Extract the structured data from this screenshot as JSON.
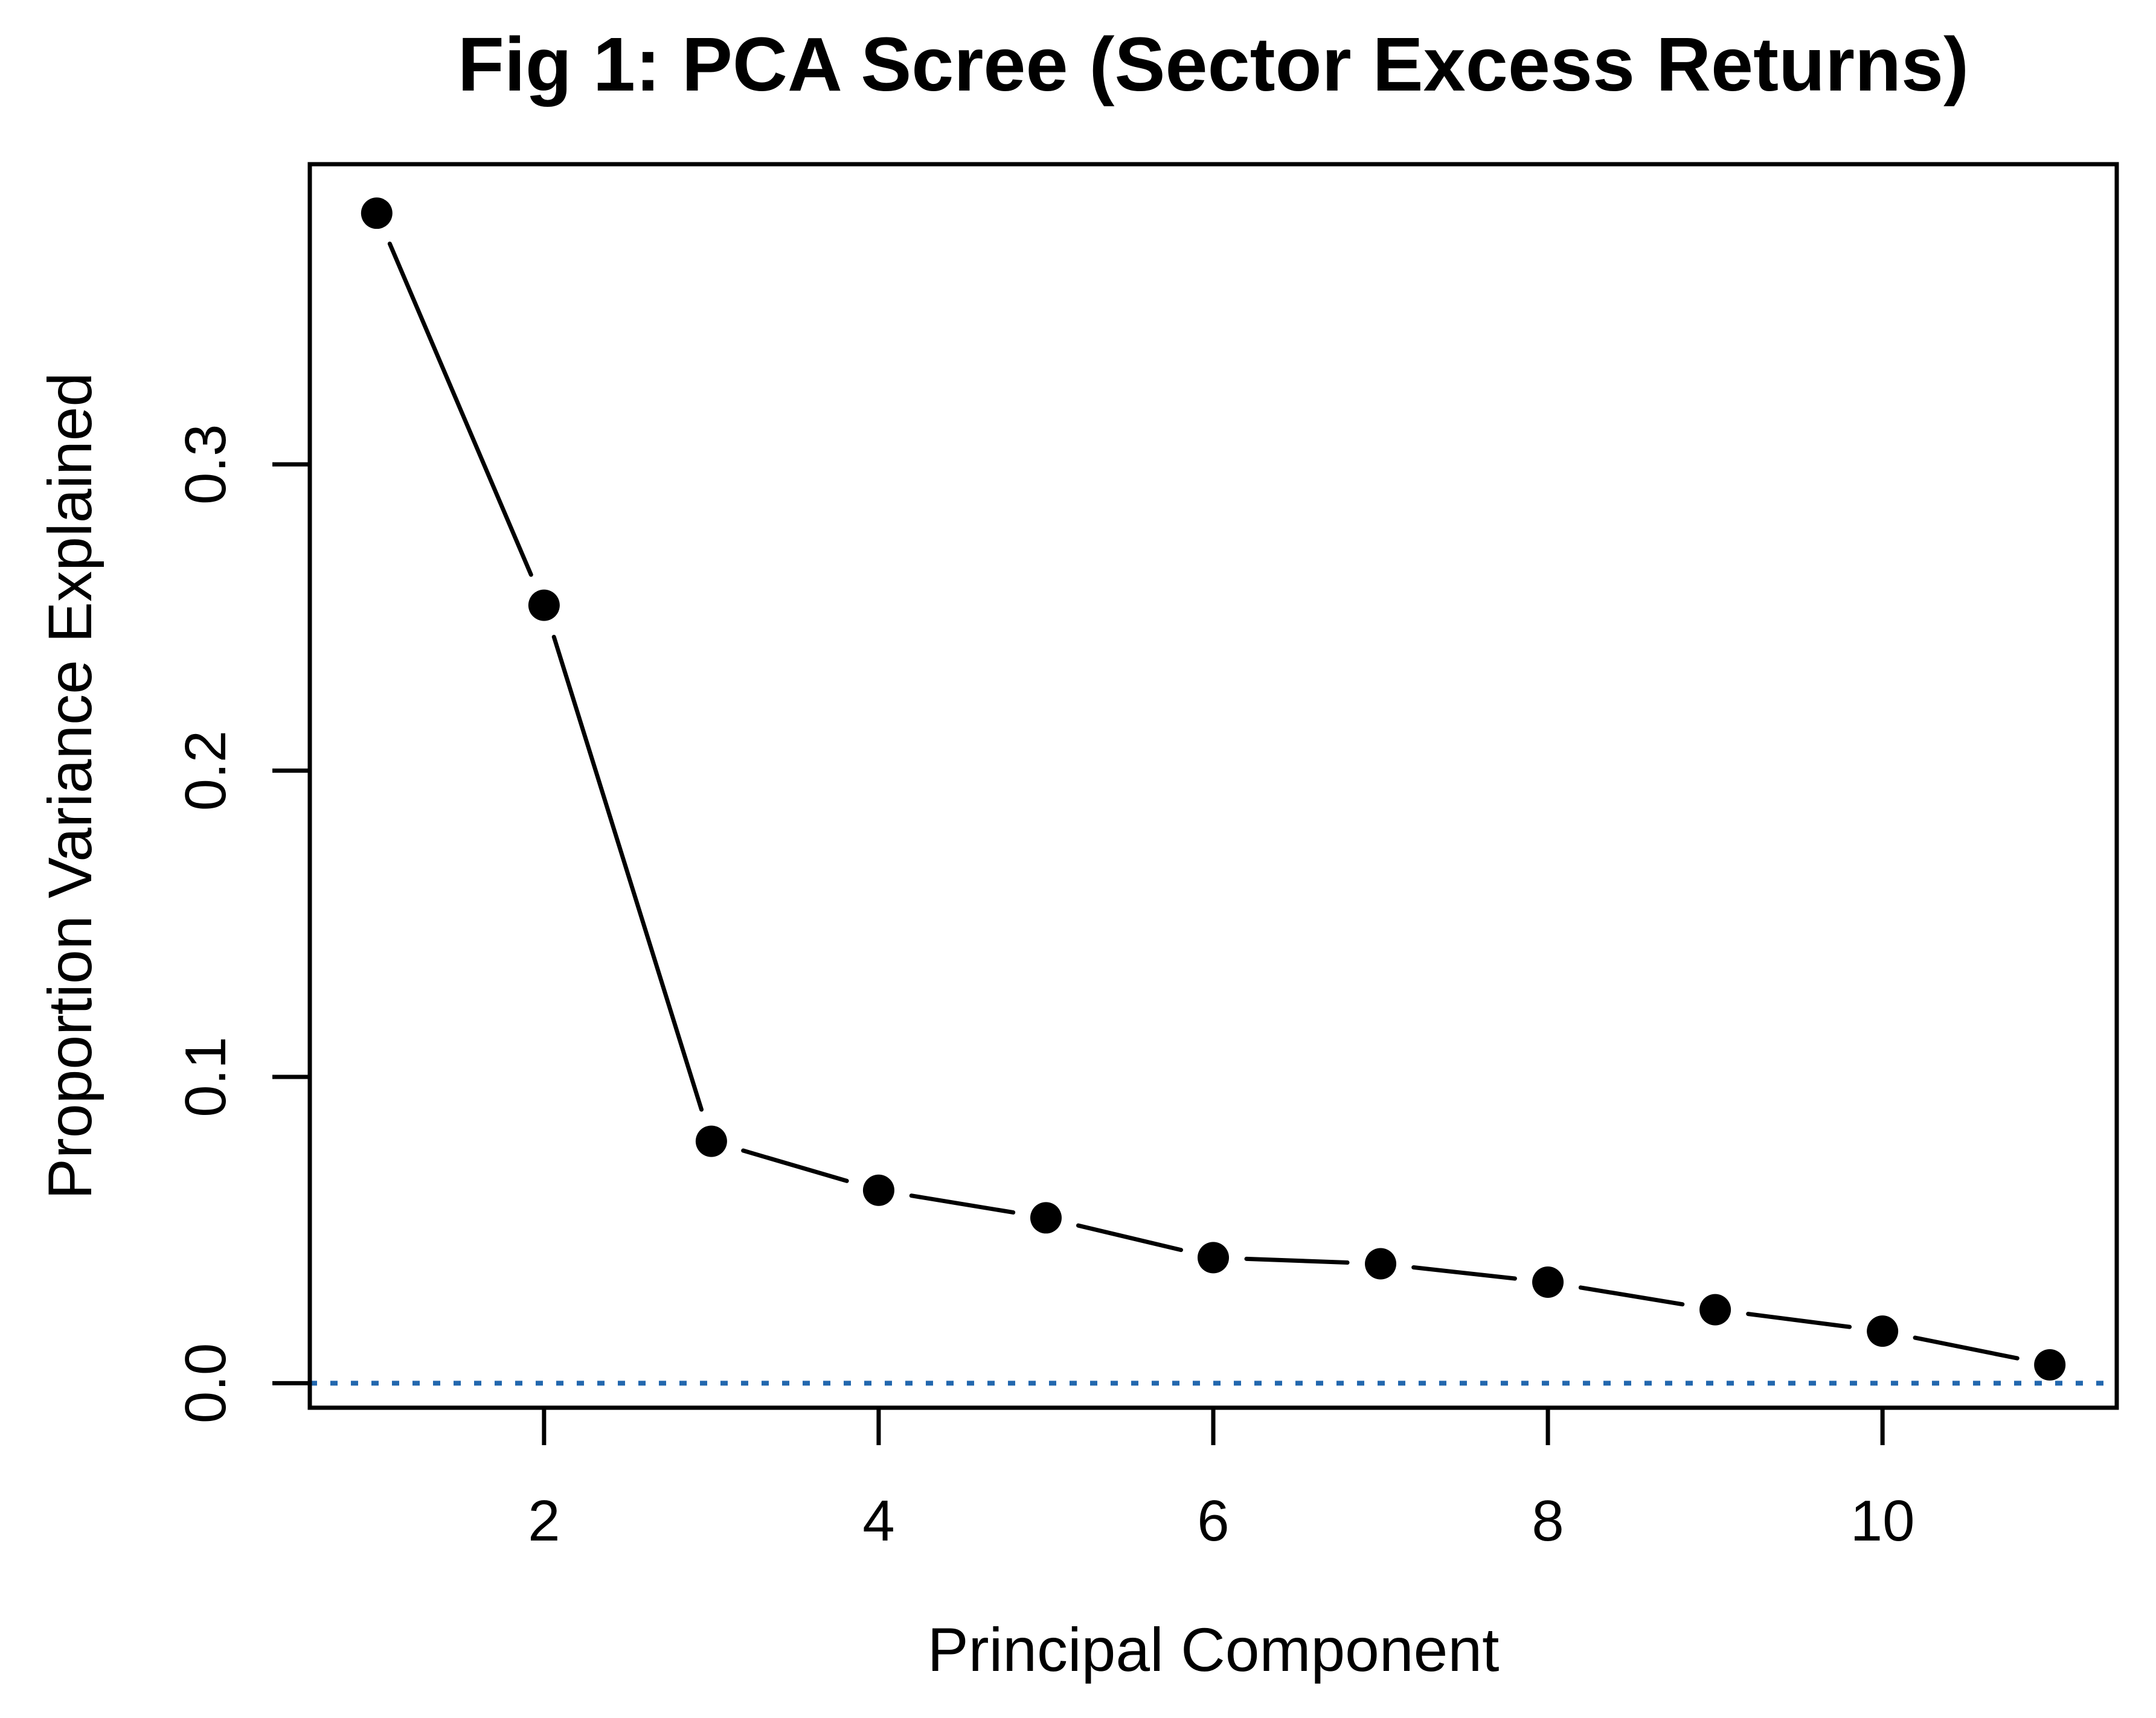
{
  "figure": {
    "background": "#ffffff"
  },
  "chart_data": {
    "type": "line",
    "title": "Fig 1: PCA Scree (Sector Excess Returns)",
    "xlabel": "Principal Component",
    "ylabel": "Proportion Variance Explained",
    "series_name": "Proportion Variance Explained",
    "x": [
      1,
      2,
      3,
      4,
      5,
      6,
      7,
      8,
      9,
      10,
      11
    ],
    "values": [
      0.382,
      0.254,
      0.079,
      0.063,
      0.054,
      0.041,
      0.039,
      0.033,
      0.024,
      0.017,
      0.006
    ],
    "x_tick_values": [
      2,
      4,
      6,
      8,
      10
    ],
    "x_tick_labels": [
      "2",
      "4",
      "6",
      "8",
      "10"
    ],
    "y_tick_values": [
      0.0,
      0.1,
      0.2,
      0.3
    ],
    "y_tick_labels": [
      "0.0",
      "0.1",
      "0.2",
      "0.3"
    ],
    "xlim": [
      0.6,
      11.4
    ],
    "ylim": [
      -0.008,
      0.398
    ],
    "grid": false,
    "legend_position": "none",
    "marker": "filled-circle",
    "line_style": "segments-with-gaps",
    "reference_line": {
      "y": 0,
      "style": "dotted"
    },
    "colors": {
      "points": "#000000",
      "line": "#000000",
      "box": "#000000",
      "text": "#000000",
      "reference_line": "#2267ae"
    }
  }
}
